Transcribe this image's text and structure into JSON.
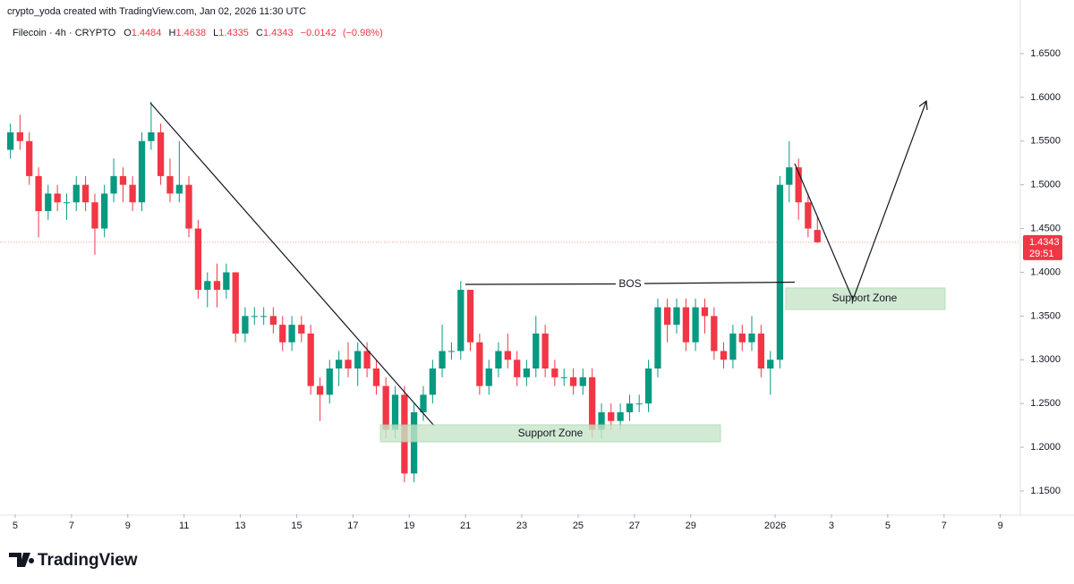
{
  "header": "crypto_yoda created with TradingView.com, Jan 02, 2026 11:30 UTC",
  "legend": {
    "symbol": "Filecoin · 4h · CRYPTO",
    "o_label": "O",
    "open": 1.4484,
    "h_label": "H",
    "high": 1.4638,
    "l_label": "L",
    "low": 1.4335,
    "c_label": "C",
    "close": 1.4343,
    "change": {
      "value": -0.0142,
      "label": "−0.0142"
    },
    "change_pct": {
      "value": -0.98,
      "label": "(−0.98%)"
    }
  },
  "price_tag": {
    "price": 1.4343,
    "timer": "29:51"
  },
  "annotations": [
    "BOS",
    "Support Zone",
    "Support Zone"
  ],
  "brand": "TradingView",
  "chart_data": {
    "type": "candlestick",
    "up_color": "#089981",
    "down_color": "#f23645",
    "xlim": [
      4.46,
      40.71
    ],
    "ylim": [
      1.1234,
      1.7113
    ],
    "xticks": [
      5,
      7,
      9,
      11,
      13,
      15,
      17,
      19,
      21,
      23,
      25,
      27,
      29,
      {
        "value": 32,
        "label": "2026"
      },
      {
        "value": 34,
        "label": "3"
      },
      {
        "value": 36,
        "label": "5"
      },
      {
        "value": 38,
        "label": "7"
      },
      {
        "value": 40,
        "label": "9"
      }
    ],
    "yticks": [
      {
        "value": 1.15,
        "label": "1.1500"
      },
      {
        "value": 1.2,
        "label": "1.2000"
      },
      {
        "value": 1.25,
        "label": "1.2500"
      },
      {
        "value": 1.3,
        "label": "1.3000"
      },
      {
        "value": 1.35,
        "label": "1.3500"
      },
      {
        "value": 1.4,
        "label": "1.4000"
      },
      {
        "value": 1.45,
        "label": "1.4500"
      },
      {
        "value": 1.5,
        "label": "1.5000"
      },
      {
        "value": 1.55,
        "label": "1.5500"
      },
      {
        "value": 1.6,
        "label": "1.6000"
      },
      {
        "value": 1.65,
        "label": "1.6500"
      }
    ],
    "x": [
      4.83,
      5.17,
      5.5,
      5.83,
      6.17,
      6.5,
      6.83,
      7.17,
      7.5,
      7.83,
      8.17,
      8.5,
      8.83,
      9.17,
      9.5,
      9.83,
      10.17,
      10.5,
      10.83,
      11.17,
      11.5,
      11.83,
      12.17,
      12.5,
      12.83,
      13.17,
      13.5,
      13.83,
      14.17,
      14.5,
      14.83,
      15.17,
      15.5,
      15.83,
      16.17,
      16.5,
      16.83,
      17.17,
      17.5,
      17.83,
      18.17,
      18.5,
      18.83,
      19.17,
      19.5,
      19.83,
      20.17,
      20.5,
      20.83,
      21.17,
      21.5,
      21.83,
      22.17,
      22.5,
      22.83,
      23.17,
      23.5,
      23.83,
      24.17,
      24.5,
      24.83,
      25.17,
      25.5,
      25.83,
      26.17,
      26.5,
      26.83,
      27.17,
      27.5,
      27.83,
      28.17,
      28.5,
      28.83,
      29.17,
      29.5,
      29.83,
      30.17,
      30.5,
      30.83,
      31.17,
      31.5,
      31.83,
      32.17,
      32.5,
      32.83,
      33.17,
      33.5
    ],
    "ohlc": [
      [
        1.54,
        1.57,
        1.53,
        1.56
      ],
      [
        1.56,
        1.58,
        1.54,
        1.55
      ],
      [
        1.55,
        1.56,
        1.5,
        1.51
      ],
      [
        1.51,
        1.52,
        1.44,
        1.47
      ],
      [
        1.47,
        1.5,
        1.46,
        1.49
      ],
      [
        1.49,
        1.5,
        1.47,
        1.48
      ],
      [
        1.48,
        1.49,
        1.46,
        1.48
      ],
      [
        1.48,
        1.51,
        1.47,
        1.5
      ],
      [
        1.5,
        1.51,
        1.47,
        1.48
      ],
      [
        1.48,
        1.49,
        1.42,
        1.45
      ],
      [
        1.45,
        1.5,
        1.44,
        1.49
      ],
      [
        1.49,
        1.53,
        1.48,
        1.51
      ],
      [
        1.51,
        1.52,
        1.48,
        1.5
      ],
      [
        1.5,
        1.51,
        1.47,
        1.48
      ],
      [
        1.48,
        1.56,
        1.47,
        1.55
      ],
      [
        1.55,
        1.595,
        1.54,
        1.56
      ],
      [
        1.56,
        1.57,
        1.5,
        1.51
      ],
      [
        1.51,
        1.53,
        1.48,
        1.49
      ],
      [
        1.49,
        1.55,
        1.48,
        1.5
      ],
      [
        1.5,
        1.51,
        1.44,
        1.45
      ],
      [
        1.45,
        1.46,
        1.37,
        1.38
      ],
      [
        1.38,
        1.4,
        1.36,
        1.39
      ],
      [
        1.39,
        1.41,
        1.36,
        1.38
      ],
      [
        1.38,
        1.41,
        1.37,
        1.4
      ],
      [
        1.4,
        1.4,
        1.32,
        1.33
      ],
      [
        1.33,
        1.36,
        1.32,
        1.35
      ],
      [
        1.35,
        1.36,
        1.34,
        1.35
      ],
      [
        1.35,
        1.36,
        1.34,
        1.35
      ],
      [
        1.35,
        1.36,
        1.33,
        1.34
      ],
      [
        1.34,
        1.35,
        1.31,
        1.32
      ],
      [
        1.32,
        1.35,
        1.31,
        1.34
      ],
      [
        1.34,
        1.35,
        1.32,
        1.33
      ],
      [
        1.33,
        1.34,
        1.26,
        1.27
      ],
      [
        1.27,
        1.28,
        1.23,
        1.26
      ],
      [
        1.26,
        1.3,
        1.25,
        1.29
      ],
      [
        1.29,
        1.31,
        1.27,
        1.3
      ],
      [
        1.3,
        1.32,
        1.28,
        1.29
      ],
      [
        1.29,
        1.32,
        1.27,
        1.31
      ],
      [
        1.31,
        1.32,
        1.28,
        1.29
      ],
      [
        1.29,
        1.3,
        1.26,
        1.27
      ],
      [
        1.27,
        1.28,
        1.21,
        1.22
      ],
      [
        1.22,
        1.27,
        1.21,
        1.26
      ],
      [
        1.26,
        1.27,
        1.16,
        1.17
      ],
      [
        1.17,
        1.25,
        1.16,
        1.24
      ],
      [
        1.24,
        1.27,
        1.23,
        1.26
      ],
      [
        1.26,
        1.3,
        1.25,
        1.29
      ],
      [
        1.29,
        1.34,
        1.28,
        1.31
      ],
      [
        1.31,
        1.32,
        1.3,
        1.31
      ],
      [
        1.31,
        1.39,
        1.3,
        1.38
      ],
      [
        1.38,
        1.38,
        1.31,
        1.32
      ],
      [
        1.32,
        1.33,
        1.26,
        1.27
      ],
      [
        1.27,
        1.3,
        1.26,
        1.29
      ],
      [
        1.29,
        1.32,
        1.28,
        1.31
      ],
      [
        1.31,
        1.33,
        1.29,
        1.3
      ],
      [
        1.3,
        1.31,
        1.27,
        1.28
      ],
      [
        1.28,
        1.3,
        1.27,
        1.29
      ],
      [
        1.29,
        1.35,
        1.28,
        1.33
      ],
      [
        1.33,
        1.34,
        1.28,
        1.29
      ],
      [
        1.29,
        1.3,
        1.27,
        1.28
      ],
      [
        1.28,
        1.29,
        1.27,
        1.28
      ],
      [
        1.28,
        1.29,
        1.26,
        1.27
      ],
      [
        1.27,
        1.29,
        1.26,
        1.28
      ],
      [
        1.28,
        1.29,
        1.21,
        1.22
      ],
      [
        1.22,
        1.25,
        1.21,
        1.24
      ],
      [
        1.24,
        1.25,
        1.22,
        1.23
      ],
      [
        1.23,
        1.25,
        1.22,
        1.24
      ],
      [
        1.24,
        1.26,
        1.23,
        1.25
      ],
      [
        1.25,
        1.26,
        1.24,
        1.25
      ],
      [
        1.25,
        1.3,
        1.24,
        1.29
      ],
      [
        1.29,
        1.37,
        1.28,
        1.36
      ],
      [
        1.36,
        1.37,
        1.32,
        1.34
      ],
      [
        1.34,
        1.37,
        1.33,
        1.36
      ],
      [
        1.36,
        1.37,
        1.31,
        1.32
      ],
      [
        1.32,
        1.37,
        1.31,
        1.36
      ],
      [
        1.36,
        1.37,
        1.33,
        1.35
      ],
      [
        1.35,
        1.36,
        1.3,
        1.31
      ],
      [
        1.31,
        1.32,
        1.29,
        1.3
      ],
      [
        1.3,
        1.34,
        1.29,
        1.33
      ],
      [
        1.33,
        1.34,
        1.31,
        1.32
      ],
      [
        1.32,
        1.35,
        1.31,
        1.33
      ],
      [
        1.33,
        1.34,
        1.28,
        1.29
      ],
      [
        1.29,
        1.31,
        1.26,
        1.3
      ],
      [
        1.3,
        1.51,
        1.29,
        1.5
      ],
      [
        1.5,
        1.55,
        1.48,
        1.52
      ],
      [
        1.52,
        1.53,
        1.46,
        1.48
      ],
      [
        1.48,
        1.49,
        1.44,
        1.45
      ],
      [
        1.4484,
        1.4638,
        1.4335,
        1.4343
      ]
    ]
  }
}
